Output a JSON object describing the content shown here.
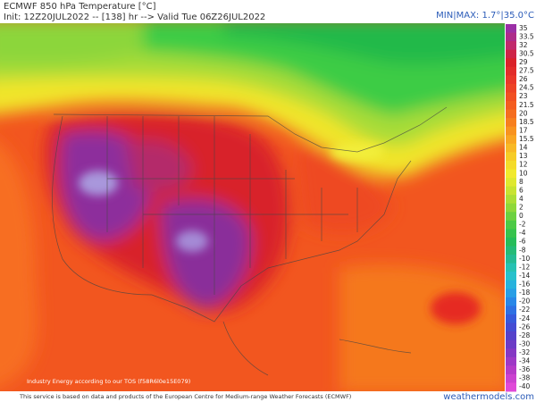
{
  "header": {
    "title": "ECMWF 850 hPa Temperature [°C]",
    "init": "Init: 12Z20JUL2022 -- [138] hr --> Valid Tue 06Z26JUL2022",
    "minmax": "MIN|MAX: 1.7°|35.0°C"
  },
  "colorbar": {
    "labels": [
      "35",
      "33.5",
      "32",
      "30.5",
      "29",
      "27.5",
      "26",
      "24.5",
      "23",
      "21.5",
      "20",
      "18.5",
      "17",
      "15.5",
      "14",
      "13",
      "12",
      "10",
      "8",
      "6",
      "4",
      "2",
      "0",
      "-2",
      "-4",
      "-6",
      "-8",
      "-10",
      "-12",
      "-14",
      "-16",
      "-18",
      "-20",
      "-22",
      "-24",
      "-26",
      "-28",
      "-30",
      "-32",
      "-34",
      "-36",
      "-38",
      "-40"
    ]
  },
  "map": {
    "watermark": "Industry Energy according to our TOS (f58R6l0e15E079)"
  },
  "footer": {
    "note": "This service is based on data and products of the European Centre for Medium-range Weather Forecasts (ECMWF)",
    "site": "weathermodels.com"
  }
}
